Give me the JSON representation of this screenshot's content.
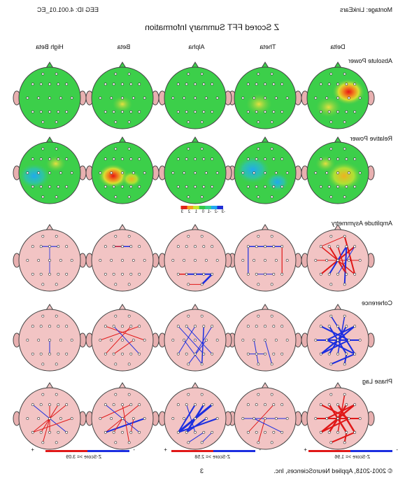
{
  "header": {
    "montage": "Montage: LinkEars",
    "eeg_id": "EEG ID: 4.001.01_EC",
    "title": "Z Scored FFT Summary Information"
  },
  "columns": [
    "Delta",
    "Theta",
    "Alpha",
    "Beta",
    "High Beta"
  ],
  "rows": [
    "Absolute Power",
    "Relative Power",
    "Amplitude Asymmetry",
    "Coherence",
    "Phase Lag"
  ],
  "colorbar": {
    "ticks": [
      "-3",
      "-2",
      "-1",
      "0",
      "1",
      "2",
      "3"
    ],
    "colors": [
      "#1f2fd6",
      "#21a8f0",
      "#35d08a",
      "#34c84a",
      "#c8e830",
      "#f5a020",
      "#e02418"
    ]
  },
  "legends": [
    {
      "minus": "-",
      "plus": "+",
      "text": "Z-Score >= 1.96"
    },
    {
      "minus": "-",
      "plus": "+",
      "text": "Z-Score >= 2.58"
    },
    {
      "minus": "-",
      "plus": "+",
      "text": "Z-Score >= 3.09"
    }
  ],
  "footer": {
    "copyright": "© 2001-2018, Applied NeuroSciences, Inc.",
    "page": "3"
  },
  "colors": {
    "head_fill_power": "#3ccf4a",
    "head_fill_connect": "#f2c4c4",
    "line_red": "#e01818",
    "line_blue": "#1c2ee0"
  }
}
